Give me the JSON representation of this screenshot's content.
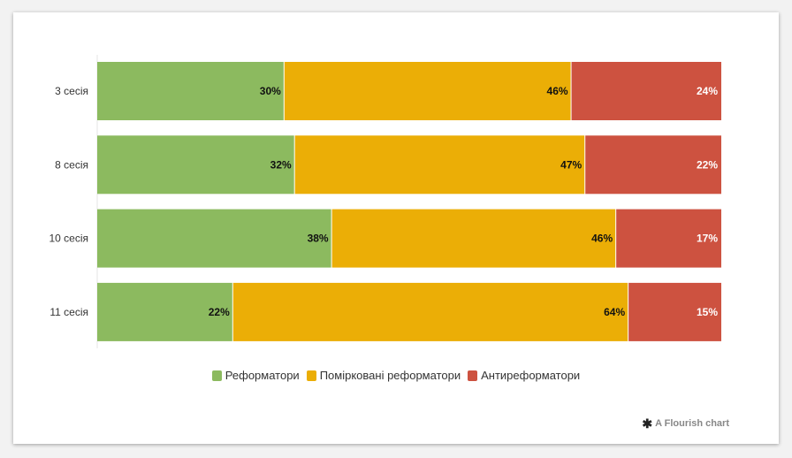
{
  "chart_data": {
    "type": "bar",
    "orientation": "horizontal",
    "stacked": true,
    "percent": true,
    "categories": [
      "3 сесія",
      "8 сесія",
      "10 сесія",
      "11 сесія"
    ],
    "series": [
      {
        "name": "Реформатори",
        "color": "#8cba5f",
        "values": [
          30,
          32,
          38,
          22
        ]
      },
      {
        "name": "Помірковані реформатори",
        "color": "#ebae06",
        "values": [
          46,
          47,
          46,
          64
        ]
      },
      {
        "name": "Антиреформатори",
        "color": "#cd5240",
        "values": [
          24,
          22,
          17,
          15
        ]
      }
    ],
    "value_suffix": "%",
    "legend_position": "bottom",
    "grid": false
  },
  "credit": {
    "text": "A Flourish chart",
    "icon": "flourish-asterisk-icon"
  }
}
